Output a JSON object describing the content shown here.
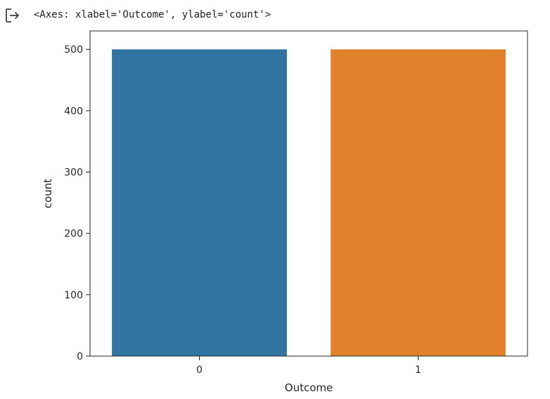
{
  "output": {
    "repr_text": "<Axes: xlabel='Outcome', ylabel='count'>",
    "icon": "output-arrow-icon"
  },
  "chart_data": {
    "type": "bar",
    "categories": [
      "0",
      "1"
    ],
    "values": [
      500,
      500
    ],
    "colors": [
      "#3274a1",
      "#e1812c"
    ],
    "title": "",
    "xlabel": "Outcome",
    "ylabel": "count",
    "ylim": [
      0,
      530
    ],
    "yticks": [
      0,
      100,
      200,
      300,
      400,
      500
    ],
    "grid": false
  }
}
